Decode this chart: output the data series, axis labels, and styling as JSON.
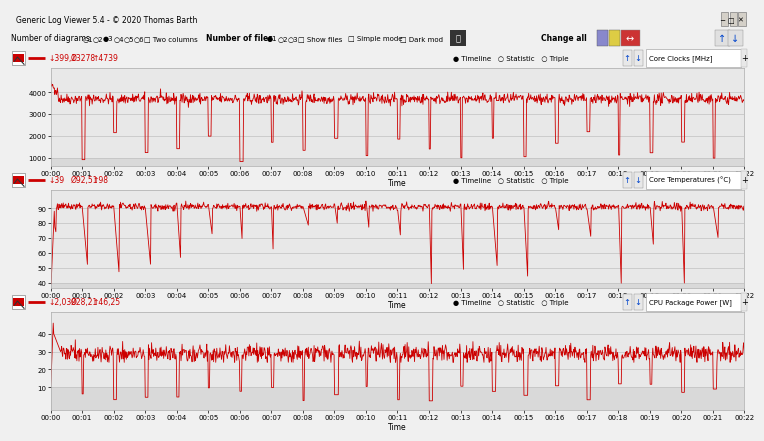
{
  "title_bar": "Generic Log Viewer 5.4 - © 2020 Thomas Barth",
  "bg_color": "#f0f0f0",
  "window_title_bg": "#d4d0c8",
  "toolbar_bg": "#f0f0f0",
  "plot_bg": "#e8e8e8",
  "darker_bg": "#d0d0d0",
  "grid_color": "#c0c0c0",
  "line_color": "#cc0000",
  "spine_color": "#aaaaaa",
  "x_ticks": [
    "00:00",
    "00:01",
    "00:02",
    "00:03",
    "00:04",
    "00:05",
    "00:06",
    "00:07",
    "00:08",
    "00:09",
    "00:10",
    "00:11",
    "00:12",
    "00:13",
    "00:14",
    "00:15",
    "00:16",
    "00:17",
    "00:18",
    "00:19",
    "00:20",
    "00:21",
    "00:22"
  ],
  "panels": [
    {
      "label": "Core Clocks [MHz]",
      "stats_min": "↓399,1",
      "stats_avg": "Ø3278",
      "stats_max": "↑4739",
      "ylim": [
        600,
        5100
      ],
      "yticks": [
        1000,
        2000,
        3000,
        4000
      ],
      "yticklabels": [
        "1000",
        "2000",
        "3000",
        "4000"
      ]
    },
    {
      "label": "Core Temperatures (°C)",
      "stats_min": "↓39",
      "stats_avg": "Ø92,51",
      "stats_max": "↑98",
      "ylim": [
        36,
        102
      ],
      "yticks": [
        40,
        50,
        60,
        70,
        80,
        90
      ],
      "yticklabels": [
        "40",
        "50",
        "60",
        "70",
        "80",
        "90"
      ]
    },
    {
      "label": "CPU Package Power [W]",
      "stats_min": "↓2,039",
      "stats_avg": "Ø28,21",
      "stats_max": "↑46,25",
      "ylim": [
        -3,
        52
      ],
      "yticks": [
        10,
        20,
        30,
        40
      ],
      "yticklabels": [
        "10",
        "20",
        "30",
        "40"
      ]
    }
  ]
}
